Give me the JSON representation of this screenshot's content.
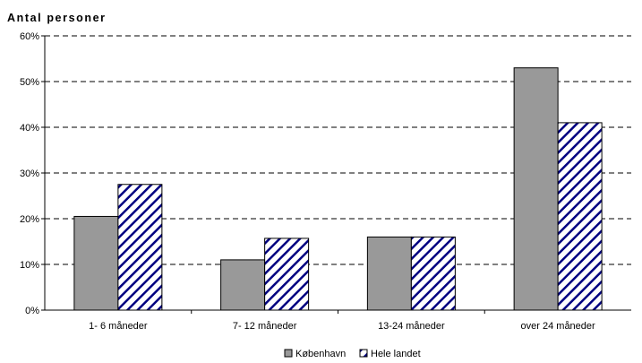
{
  "chart_data": {
    "type": "bar",
    "ylabel": "Antal personer",
    "xlabel": "",
    "categories": [
      "1- 6 måneder",
      "7- 12 måneder",
      "13-24 måneder",
      "over 24 måneder"
    ],
    "series": [
      {
        "name": "København",
        "values": [
          20.5,
          11,
          16,
          53
        ],
        "color": "#999999",
        "fill": "solid"
      },
      {
        "name": "Hele landet",
        "values": [
          27.5,
          15.7,
          16,
          41
        ],
        "color": "#000080",
        "fill": "hatched"
      }
    ],
    "ylim": [
      0,
      60
    ],
    "yticks": [
      "0%",
      "10%",
      "20%",
      "30%",
      "40%",
      "50%",
      "60%"
    ],
    "ytick_values": [
      0,
      10,
      20,
      30,
      40,
      50,
      60
    ],
    "grid": "dashed horizontal",
    "legend": "bottom-center"
  }
}
